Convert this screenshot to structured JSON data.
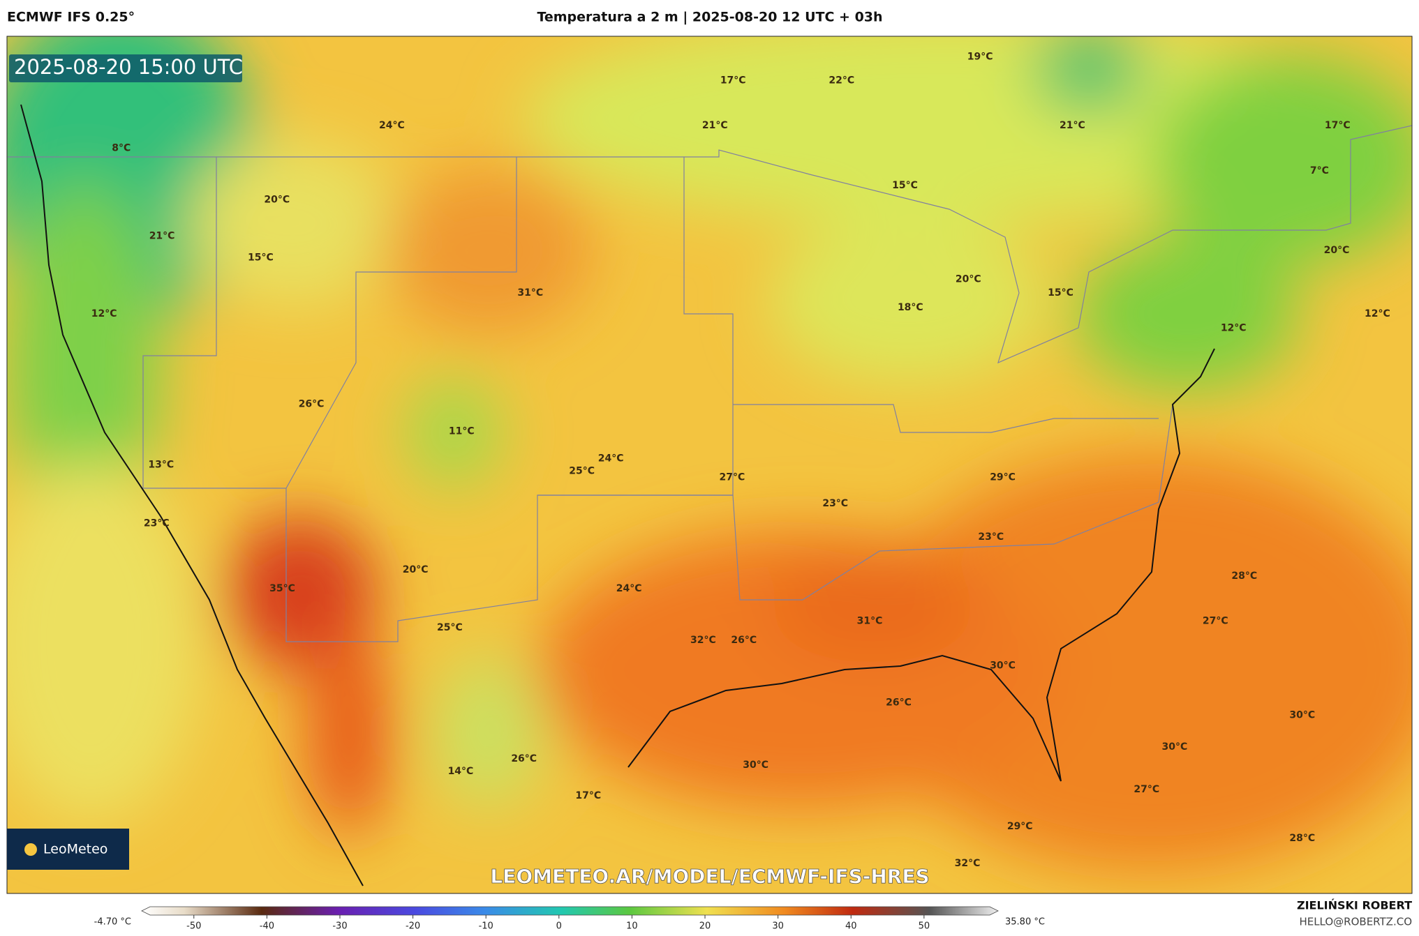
{
  "header": {
    "model": "ECMWF IFS 0.25°",
    "title": "Temperatura a 2 m | 2025-08-20 12 UTC + 03h"
  },
  "map": {
    "timestamp": "2025-08-20 15:00 UTC",
    "labels": [
      "19°C",
      "17°C",
      "22°C",
      "24°C",
      "21°C",
      "21°C",
      "17°C",
      "8°C",
      "7°C",
      "15°C",
      "20°C",
      "21°C",
      "15°C",
      "20°C",
      "20°C",
      "31°C",
      "15°C",
      "18°C",
      "12°C",
      "12°C",
      "12°C",
      "26°C",
      "11°C",
      "24°C",
      "25°C",
      "27°C",
      "29°C",
      "13°C",
      "23°C",
      "23°C",
      "23°C",
      "28°C",
      "20°C",
      "24°C",
      "35°C",
      "27°C",
      "31°C",
      "25°C",
      "32°C",
      "26°C",
      "30°C",
      "26°C",
      "30°C",
      "30°C",
      "26°C",
      "30°C",
      "14°C",
      "17°C",
      "27°C",
      "29°C",
      "28°C",
      "32°C"
    ],
    "logo": "LeoMeteo",
    "watermark": "LEOMETEO.AR/MODEL/ECMWF-IFS-HRES"
  },
  "colorbar": {
    "min_label": "-4.70 °C",
    "max_label": "35.80 °C",
    "lim": [
      -56,
      59
    ],
    "ticks": [
      -50,
      -40,
      -30,
      -20,
      -10,
      0,
      10,
      20,
      30,
      40,
      50
    ]
  },
  "footer": {
    "author": "ZIELIŃSKI ROBERT",
    "email": "HELLO@ROBERTZ.CO"
  }
}
